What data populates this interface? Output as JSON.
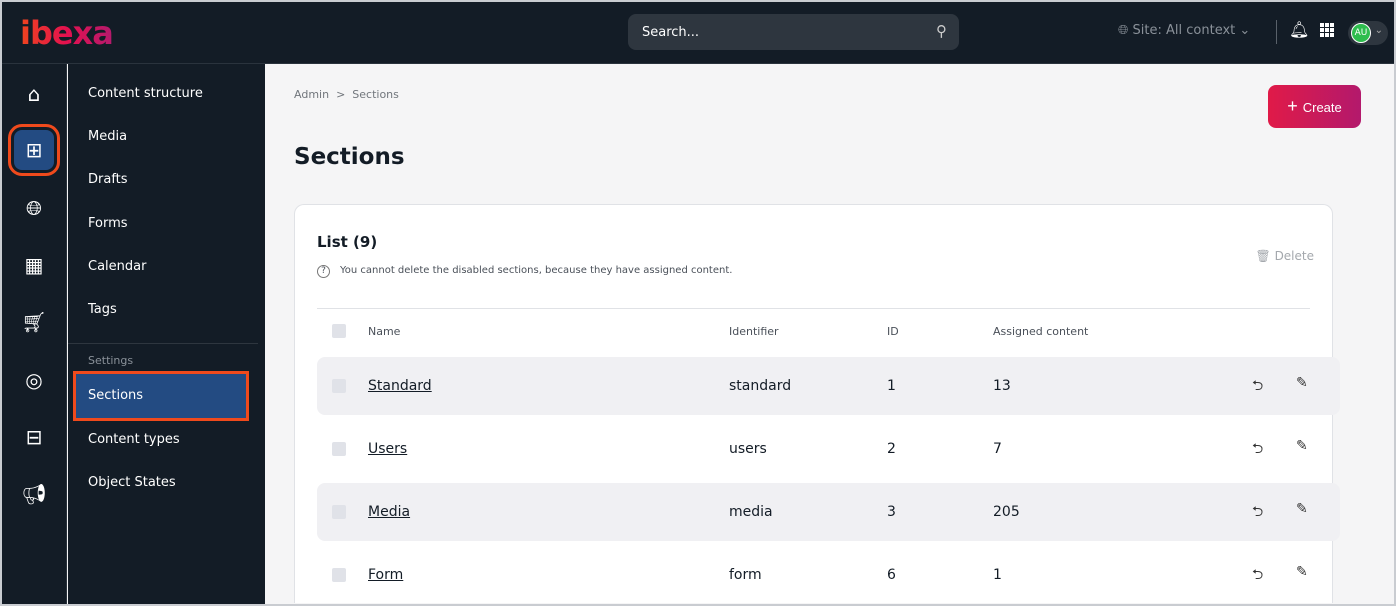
{
  "header": {
    "logo": "ibexa",
    "search_placeholder": "Search...",
    "site": "Site: All context",
    "user_initials": "AU"
  },
  "rail": [
    "home-icon",
    "content-tree-icon",
    "globe-icon",
    "catalog-icon",
    "cart-icon",
    "target-icon",
    "admin-icon",
    "megaphone-icon"
  ],
  "subnav": {
    "items": [
      "Content structure",
      "Media",
      "Drafts",
      "Forms",
      "Calendar",
      "Tags"
    ],
    "settings_header": "Settings",
    "settings_items": [
      "Sections",
      "Content types",
      "Object States"
    ]
  },
  "breadcrumb": {
    "parent": "Admin",
    "sep": ">",
    "current": "Sections"
  },
  "create_label": "Create",
  "title": "Sections",
  "list": {
    "title": "List (9)",
    "note": "You cannot delete the disabled sections, because they have assigned content.",
    "delete_label": "Delete",
    "columns": [
      "Name",
      "Identifier",
      "ID",
      "Assigned content"
    ],
    "rows": [
      {
        "name": "Standard",
        "identifier": "standard",
        "id": "1",
        "assigned": "13"
      },
      {
        "name": "Users",
        "identifier": "users",
        "id": "2",
        "assigned": "7"
      },
      {
        "name": "Media",
        "identifier": "media",
        "id": "3",
        "assigned": "205"
      },
      {
        "name": "Form",
        "identifier": "form",
        "id": "6",
        "assigned": "1"
      }
    ]
  }
}
